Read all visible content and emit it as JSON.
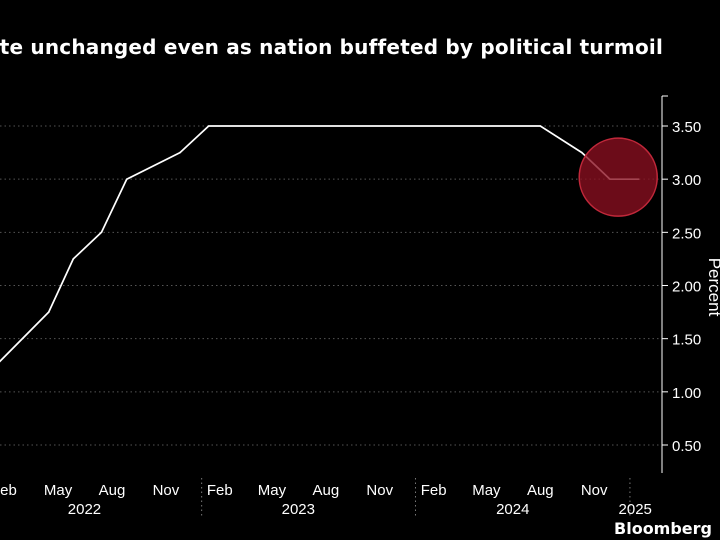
{
  "title": "ate unchanged even as nation buffeted by political turmoil",
  "brand": "Bloomberg",
  "colors": {
    "background": "#000000",
    "line": "#ffffff",
    "highlight": "#8b1020",
    "grid": "#555555"
  },
  "chart_data": {
    "type": "line",
    "title": "ate unchanged even as nation buffeted by political turmoil",
    "ylabel": "Percent",
    "ylim": [
      0,
      3.75
    ],
    "yticks": [
      0.5,
      1.0,
      1.5,
      2.0,
      2.5,
      3.0,
      3.5
    ],
    "ytick_labels": [
      "0.50",
      "1.00",
      "1.50",
      "2.00",
      "2.50",
      "3.00",
      "3.50"
    ],
    "xlim": [
      "2022-01-15",
      "2025-01-25"
    ],
    "x_month_ticks": [
      {
        "date": "2022-02-01",
        "label": "Feb"
      },
      {
        "date": "2022-05-01",
        "label": "May"
      },
      {
        "date": "2022-08-01",
        "label": "Aug"
      },
      {
        "date": "2022-11-01",
        "label": "Nov"
      },
      {
        "date": "2023-02-01",
        "label": "Feb"
      },
      {
        "date": "2023-05-01",
        "label": "May"
      },
      {
        "date": "2023-08-01",
        "label": "Aug"
      },
      {
        "date": "2023-11-01",
        "label": "Nov"
      },
      {
        "date": "2024-02-01",
        "label": "Feb"
      },
      {
        "date": "2024-05-01",
        "label": "May"
      },
      {
        "date": "2024-08-01",
        "label": "Aug"
      },
      {
        "date": "2024-11-01",
        "label": "Nov"
      }
    ],
    "x_year_labels": [
      {
        "date": "2022-06-15",
        "label": "2022"
      },
      {
        "date": "2023-06-15",
        "label": "2023"
      },
      {
        "date": "2024-06-15",
        "label": "2024"
      },
      {
        "date": "2025-01-10",
        "label": "2025"
      }
    ],
    "year_boundaries": [
      "2023-01-01",
      "2024-01-01",
      "2025-01-01"
    ],
    "series": [
      {
        "points": [
          {
            "x": "2022-01-15",
            "y": 1.25
          },
          {
            "x": "2022-04-15",
            "y": 1.75
          },
          {
            "x": "2022-05-27",
            "y": 2.25
          },
          {
            "x": "2022-07-14",
            "y": 2.5
          },
          {
            "x": "2022-08-26",
            "y": 3.0
          },
          {
            "x": "2022-11-25",
            "y": 3.25
          },
          {
            "x": "2023-01-13",
            "y": 3.5
          },
          {
            "x": "2024-08-01",
            "y": 3.5
          },
          {
            "x": "2024-10-11",
            "y": 3.25
          },
          {
            "x": "2024-11-28",
            "y": 3.0
          },
          {
            "x": "2025-01-16",
            "y": 3.0
          }
        ]
      }
    ],
    "highlight": {
      "shape": "circle",
      "x": "2024-12-12",
      "y": 3.0
    },
    "grid": true,
    "legend": "none"
  }
}
